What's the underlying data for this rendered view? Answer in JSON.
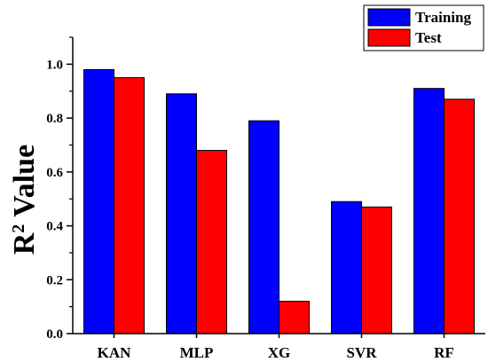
{
  "chart_data": {
    "type": "bar",
    "categories": [
      "KAN",
      "MLP",
      "XG",
      "SVR",
      "RF"
    ],
    "series": [
      {
        "name": "Training",
        "color": "#0000ff",
        "values": [
          0.98,
          0.89,
          0.79,
          0.49,
          0.91
        ]
      },
      {
        "name": "Test",
        "color": "#ff0000",
        "values": [
          0.95,
          0.68,
          0.12,
          0.47,
          0.87
        ]
      }
    ],
    "title": "",
    "xlabel": "",
    "ylabel_base": "R",
    "ylabel_sup": "2",
    "ylabel_rest": " Value",
    "ylim": [
      0,
      1.1
    ],
    "yticks": [
      "0.0",
      "0.2",
      "0.4",
      "0.6",
      "0.8",
      "1.0"
    ],
    "legend_position": "top-right",
    "grid": false
  }
}
